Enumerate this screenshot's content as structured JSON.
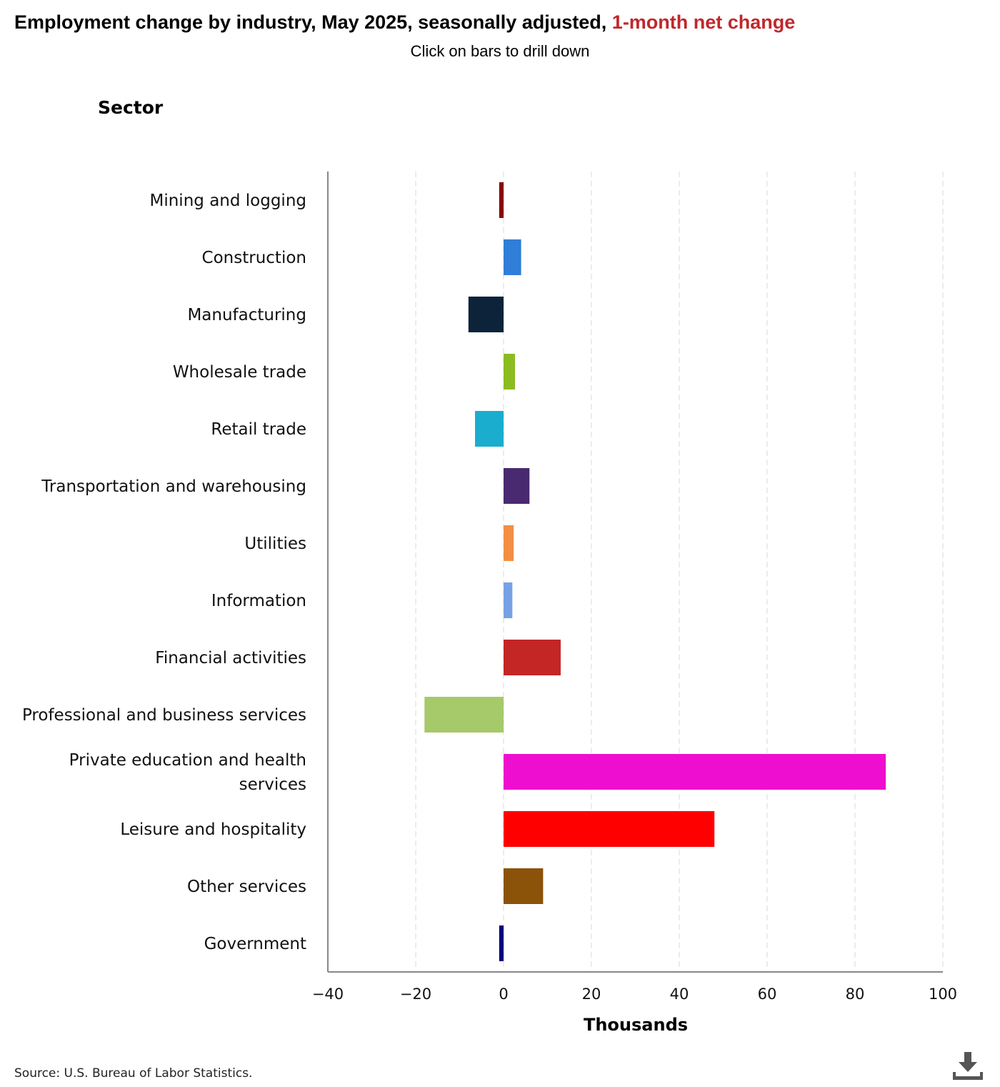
{
  "header": {
    "title_main": "Employment change by industry, May 2025, seasonally adjusted,",
    "title_accent": "1-month net change",
    "subtitle": "Click on bars to drill down"
  },
  "footer": {
    "source": "Source: U.S. Bureau of Labor Statistics.",
    "download_icon": "download-icon"
  },
  "colors": {
    "accent": "#c0282d",
    "grid": "#d9d9d9",
    "axis": "#888888"
  },
  "chart_data": {
    "type": "bar",
    "orientation": "horizontal",
    "title": "Employment change by industry, May 2025, seasonally adjusted, 1-month net change",
    "ylabel": "Sector",
    "xlabel": "Thousands",
    "xlim": [
      -40,
      100
    ],
    "xticks": [
      -40,
      -20,
      0,
      20,
      40,
      60,
      80,
      100
    ],
    "xtick_labels": [
      "−40",
      "−20",
      "0",
      "20",
      "40",
      "60",
      "80",
      "100"
    ],
    "grid": true,
    "categories": [
      "Mining and logging",
      "Construction",
      "Manufacturing",
      "Wholesale trade",
      "Retail trade",
      "Transportation and warehousing",
      "Utilities",
      "Information",
      "Financial activities",
      "Professional and business services",
      "Private education and health services",
      "Leisure and hospitality",
      "Other services",
      "Government"
    ],
    "category_lines": [
      [
        "Mining and logging"
      ],
      [
        "Construction"
      ],
      [
        "Manufacturing"
      ],
      [
        "Wholesale trade"
      ],
      [
        "Retail trade"
      ],
      [
        "Transportation and warehousing"
      ],
      [
        "Utilities"
      ],
      [
        "Information"
      ],
      [
        "Financial activities"
      ],
      [
        "Professional and business services"
      ],
      [
        "Private education and health",
        "services"
      ],
      [
        "Leisure and hospitality"
      ],
      [
        "Other services"
      ],
      [
        "Government"
      ]
    ],
    "values": [
      -1,
      4,
      -8,
      2.6,
      -6.5,
      5.9,
      2.3,
      2,
      13,
      -18,
      87,
      48,
      9,
      -1
    ],
    "bar_colors": [
      "#8b0000",
      "#2f7ed8",
      "#0d233a",
      "#8bbc21",
      "#1aadce",
      "#492970",
      "#f28f43",
      "#77a1e5",
      "#c42525",
      "#a6c96a",
      "#ee0ecf",
      "#ff0000",
      "#8b520a",
      "#000080"
    ]
  }
}
